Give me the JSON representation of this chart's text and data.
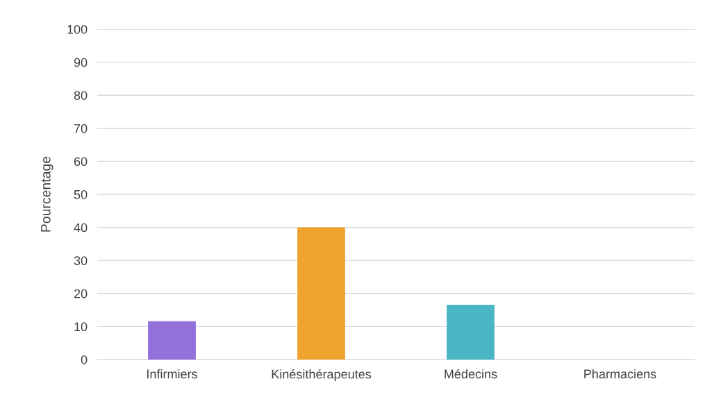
{
  "chart_data": {
    "type": "bar",
    "ylabel": "Pourcentage",
    "categories": [
      "Infirmiers",
      "Kinésithérapeutes",
      "Médecins",
      "Pharmaciens"
    ],
    "values": [
      11.6,
      40,
      16.6,
      0
    ],
    "colors": [
      "#9370db",
      "#f0a22e",
      "#4ab5c4",
      "#a5a5a5"
    ],
    "ylim": [
      0,
      100
    ],
    "yticks": [
      0,
      10,
      20,
      30,
      40,
      50,
      60,
      70,
      80,
      90,
      100
    ],
    "grid": "y"
  }
}
